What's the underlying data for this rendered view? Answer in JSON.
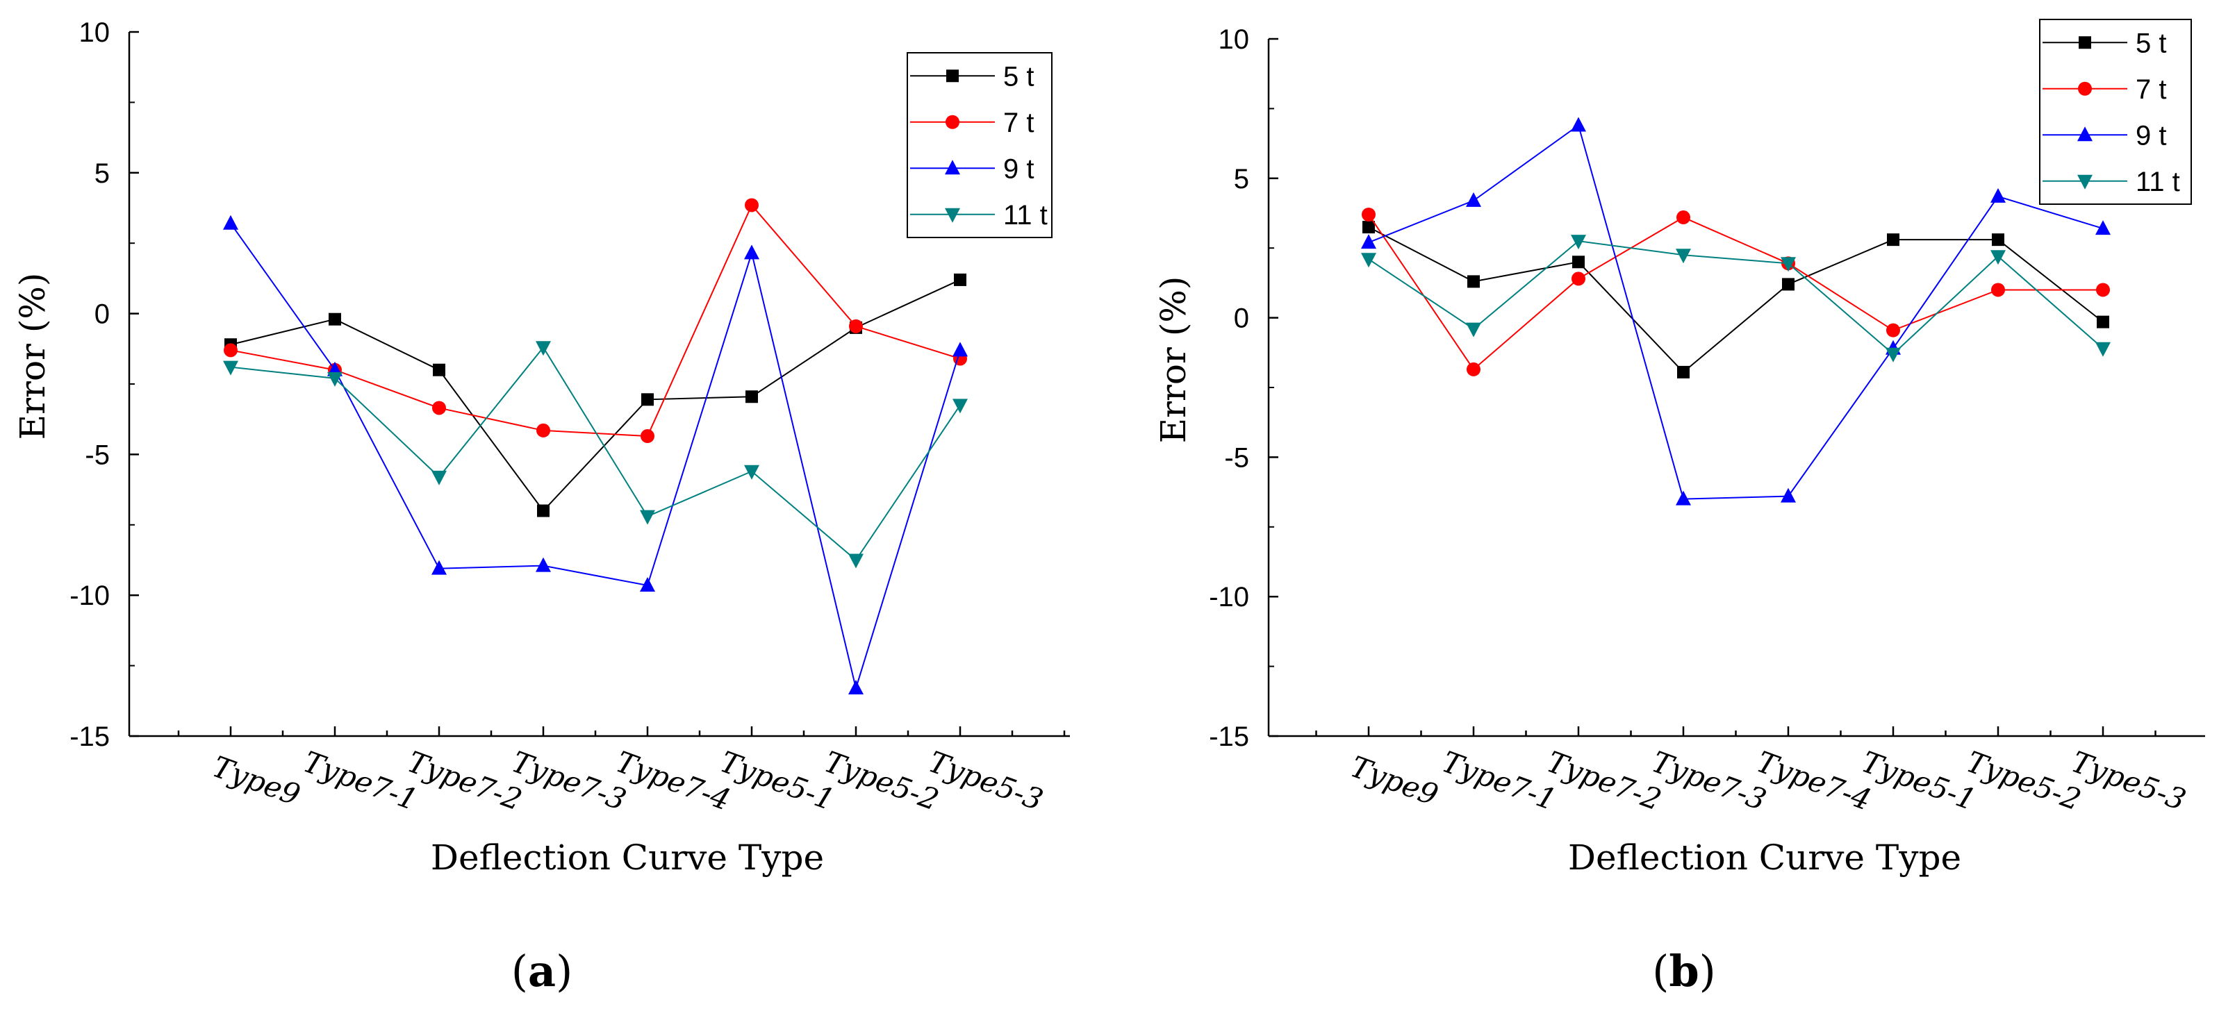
{
  "chart_data": [
    {
      "type": "line",
      "panel_label": "(a)",
      "panel_letter": "a",
      "xlabel": "Deflection Curve Type",
      "ylabel": "Error (%)",
      "ylim": [
        -15,
        10
      ],
      "yticks": [
        -15,
        -10,
        -5,
        0,
        5,
        10
      ],
      "categories": [
        "Type9",
        "Type7-1",
        "Type7-2",
        "Type7-3",
        "Type7-4",
        "Type5-1",
        "Type5-2",
        "Type5-3"
      ],
      "legend_position": "top-right",
      "grid": false,
      "series": [
        {
          "name": "5 t",
          "color": "#000000",
          "marker": "square",
          "values": [
            -1.1,
            -0.2,
            -2.0,
            -7.0,
            -3.05,
            -2.95,
            -0.5,
            1.2
          ]
        },
        {
          "name": "7 t",
          "color": "#ff0000",
          "marker": "circle",
          "values": [
            -1.3,
            -2.0,
            -3.35,
            -4.15,
            -4.35,
            3.85,
            -0.45,
            -1.6
          ]
        },
        {
          "name": "9 t",
          "color": "#0000ff",
          "marker": "triangle-up",
          "values": [
            3.2,
            -2.0,
            -9.05,
            -8.95,
            -9.65,
            2.15,
            -13.3,
            -1.3
          ]
        },
        {
          "name": "11 t",
          "color": "#008080",
          "marker": "triangle-down",
          "values": [
            -1.9,
            -2.3,
            -5.8,
            -1.2,
            -7.2,
            -5.6,
            -8.75,
            -3.25
          ]
        }
      ]
    },
    {
      "type": "line",
      "panel_label": "(b)",
      "panel_letter": "b",
      "xlabel": "Deflection Curve Type",
      "ylabel": "Error (%)",
      "ylim": [
        -15,
        10
      ],
      "yticks": [
        -15,
        -10,
        -5,
        0,
        5,
        10
      ],
      "categories": [
        "Type9",
        "Type7-1",
        "Type7-2",
        "Type7-3",
        "Type7-4",
        "Type5-1",
        "Type5-2",
        "Type5-3"
      ],
      "legend_position": "top-right",
      "grid": false,
      "series": [
        {
          "name": "5 t",
          "color": "#000000",
          "marker": "square",
          "values": [
            3.25,
            1.3,
            2.0,
            -1.95,
            1.2,
            2.8,
            2.8,
            -0.15
          ]
        },
        {
          "name": "7 t",
          "color": "#ff0000",
          "marker": "circle",
          "values": [
            3.7,
            -1.85,
            1.4,
            3.6,
            1.95,
            -0.45,
            1.0,
            1.0
          ]
        },
        {
          "name": "9 t",
          "color": "#0000ff",
          "marker": "triangle-up",
          "values": [
            2.7,
            4.2,
            6.9,
            -6.5,
            -6.4,
            -1.1,
            4.35,
            3.2
          ]
        },
        {
          "name": "11 t",
          "color": "#008080",
          "marker": "triangle-down",
          "values": [
            2.1,
            -0.4,
            2.75,
            2.25,
            1.95,
            -1.3,
            2.2,
            -1.1
          ]
        }
      ]
    }
  ]
}
